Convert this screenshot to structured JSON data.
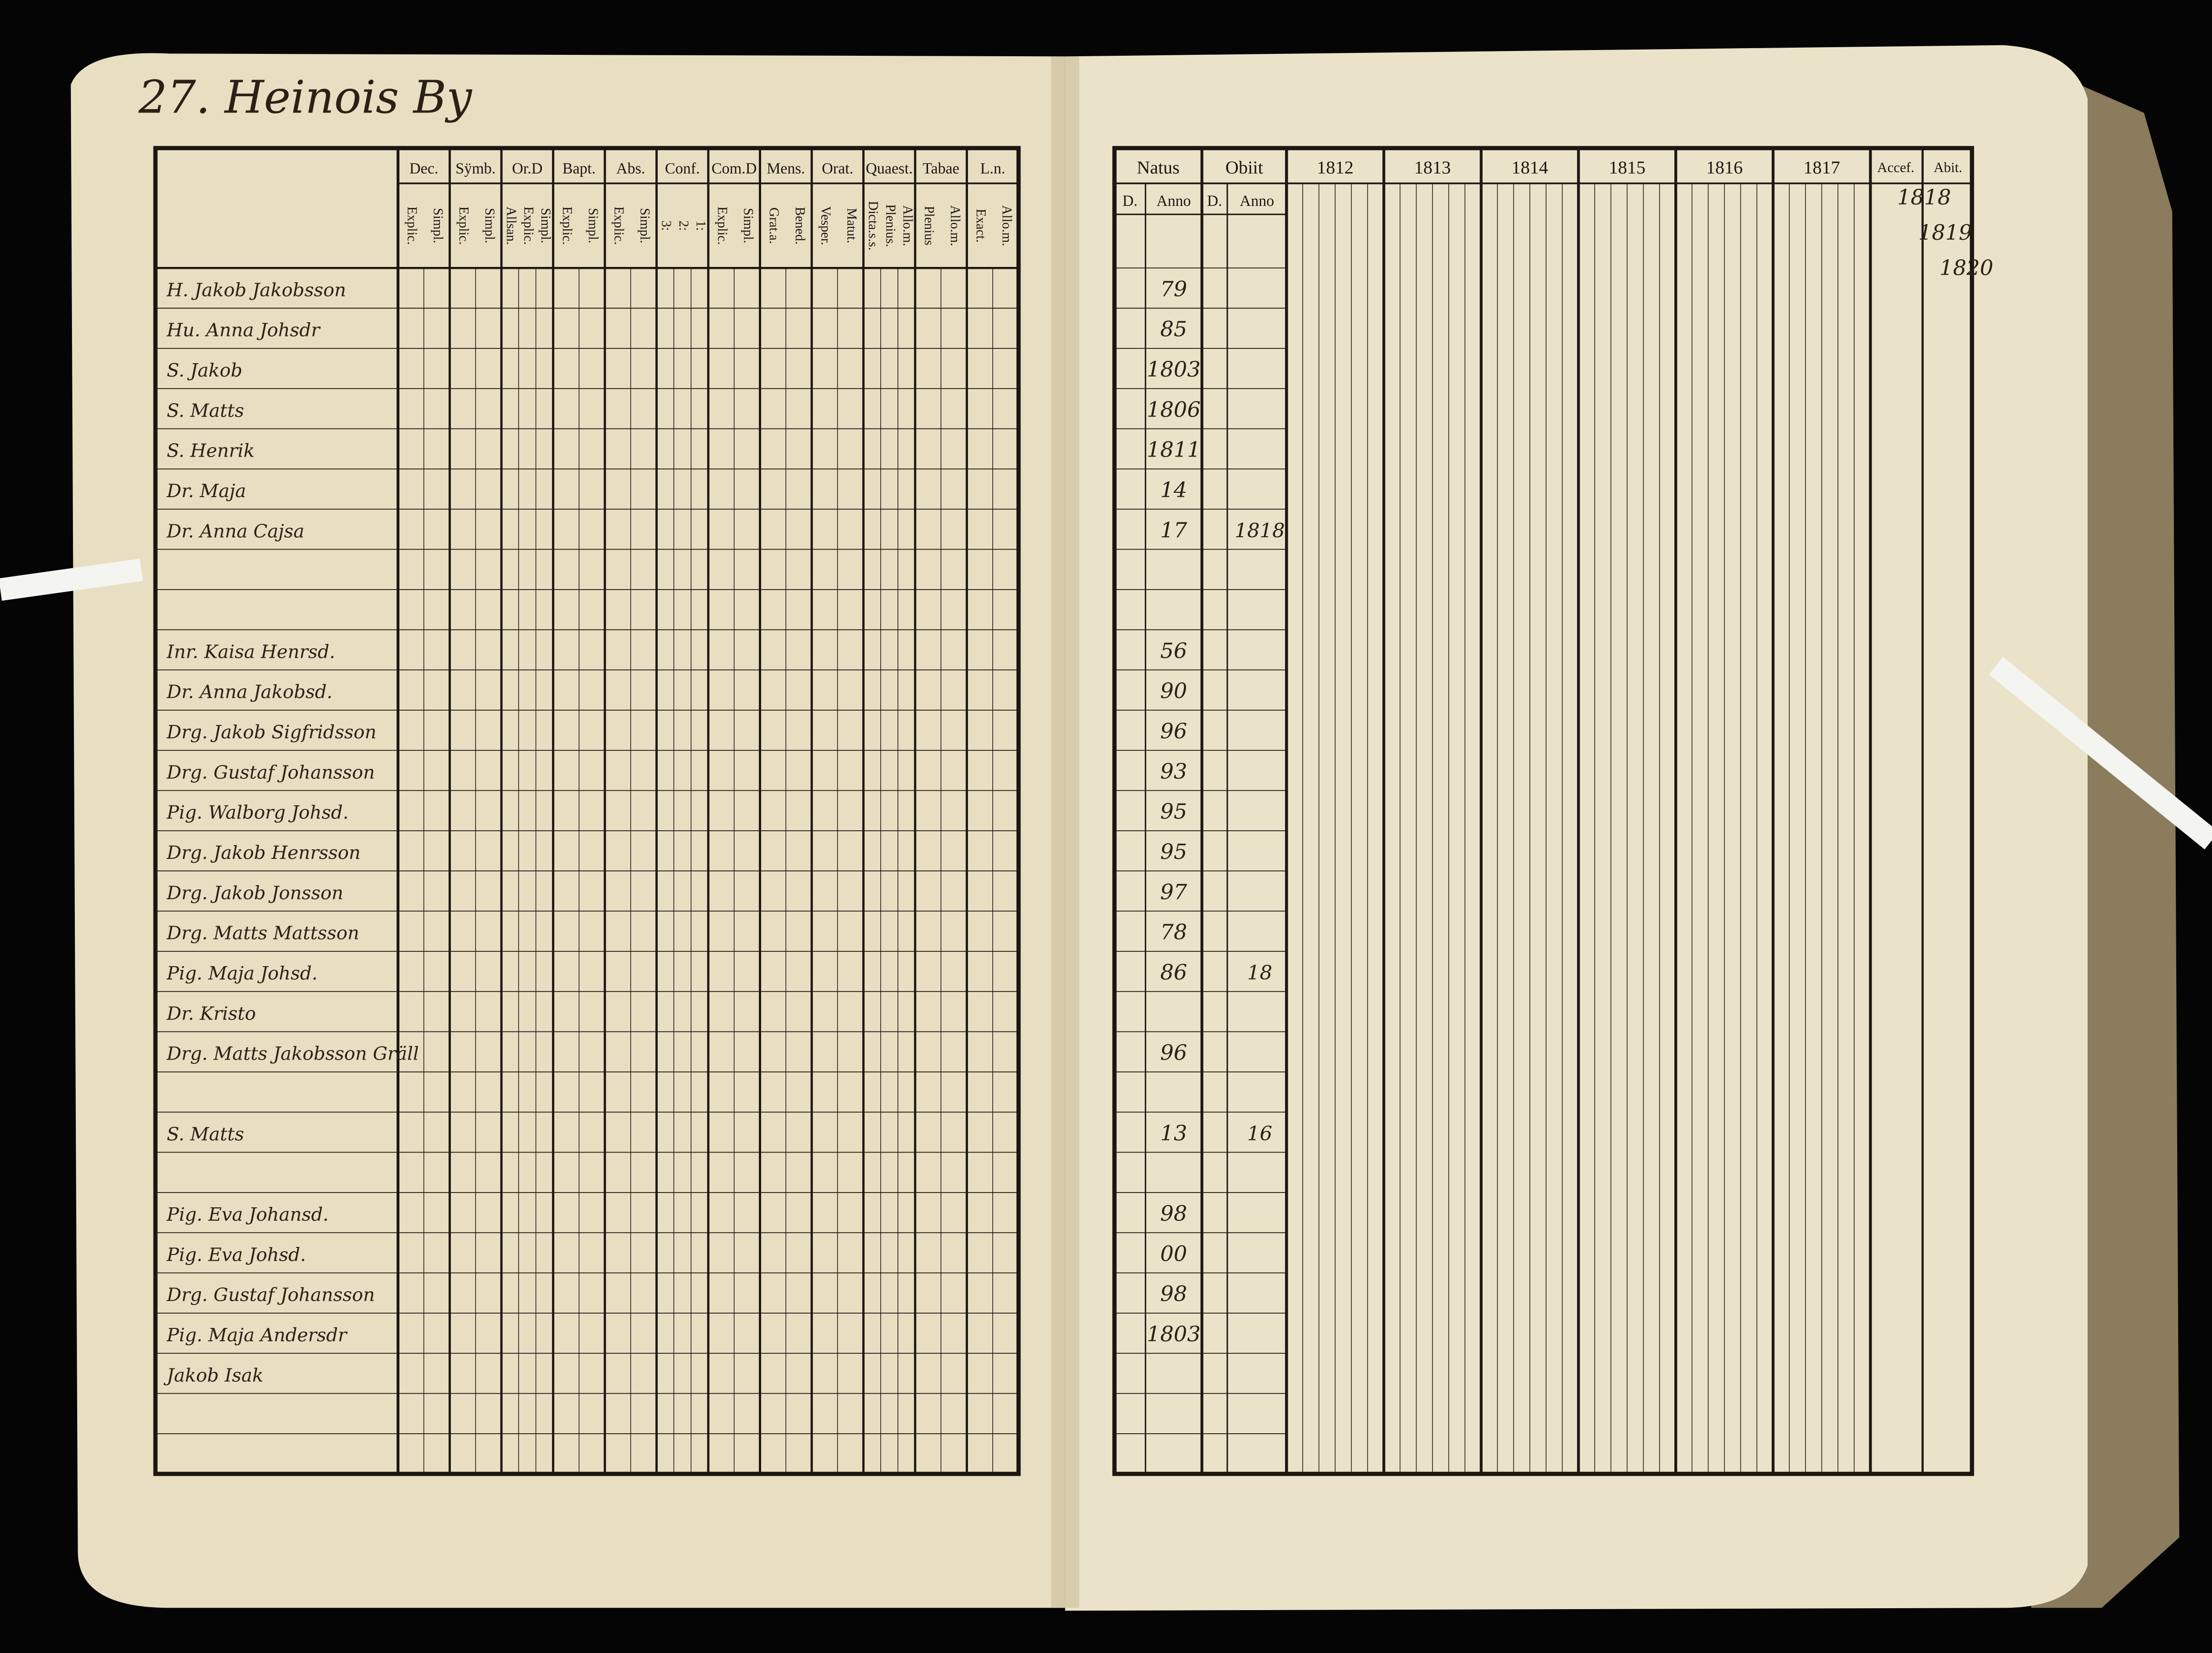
{
  "left_page": {
    "title": "27. Heinois By",
    "columns": [
      {
        "label": "Dec.",
        "sub": [
          "Explic.",
          "Simpl."
        ]
      },
      {
        "label": "Sÿmb.",
        "sub": [
          "Explic.",
          "Simpl."
        ]
      },
      {
        "label": "Or.D",
        "sub": [
          "Allsan.",
          "Explic.",
          "Simpl."
        ]
      },
      {
        "label": "Bapt.",
        "sub": [
          "Explic.",
          "Simpl."
        ]
      },
      {
        "label": "Abs.",
        "sub": [
          "Explic.",
          "Simpl."
        ]
      },
      {
        "label": "Conf.",
        "sub": [
          "3:",
          "2:",
          "1:"
        ]
      },
      {
        "label": "Com.D",
        "sub": [
          "Explic.",
          "Simpl."
        ]
      },
      {
        "label": "Mens.",
        "sub": [
          "Grat.a.",
          "Bened."
        ]
      },
      {
        "label": "Orat.",
        "sub": [
          "Vesper.",
          "Matut."
        ]
      },
      {
        "label": "Quaest.",
        "sub": [
          "Dicta.s.s.",
          "Plenius.",
          "Allo.m."
        ]
      },
      {
        "label": "Tabae",
        "sub": [
          "Plenius",
          "Allo.m."
        ]
      },
      {
        "label": "L.n.",
        "sub": [
          "Exact.",
          "Allo.m."
        ]
      }
    ],
    "names": [
      "H. Jakob Jakobsson",
      "Hu. Anna Johsdr",
      "S. Jakob",
      "S. Matts",
      "S. Henrik",
      "Dr. Maja",
      "Dr. Anna Cajsa",
      "Inr. Kaisa Henrsd.",
      "Dr. Anna Jakobsd.",
      "Drg. Jakob Sigfridsson",
      "Drg. Gustaf Johansson",
      "Pig. Walborg Johsd.",
      "Drg. Jakob Henrsson",
      "Drg. Jakob Jonsson",
      "Drg. Matts Mattsson",
      "Pig. Maja Johsd.",
      "Dr. Kristo",
      "Drg. Matts Jakobsson Gräll",
      "S. Matts",
      "Pig. Eva Johansd.",
      "Pig. Eva Johsd.",
      "Drg. Gustaf Johansson",
      "Pig. Maja Andersdr",
      "Jakob Isak"
    ]
  },
  "right_page": {
    "natus": {
      "label": "Natus",
      "sub": [
        "D.",
        "Anno"
      ]
    },
    "obiit": {
      "label": "Obiit",
      "sub": [
        "D.",
        "Anno"
      ]
    },
    "years": [
      "1812",
      "1813",
      "1814",
      "1815",
      "1816",
      "1817"
    ],
    "accef": "Accef.",
    "abit": "Abit.",
    "notes": [
      "1818",
      "1819",
      "1820"
    ],
    "natus_anno": [
      "79",
      "85",
      "1803",
      "1806",
      "1811",
      "14",
      "17",
      "56",
      "90",
      "96",
      "93",
      "95",
      "95",
      "97",
      "78",
      "86",
      null,
      "96",
      "13",
      "98",
      "00",
      "98",
      "1803",
      null
    ],
    "obiit_anno": [
      null,
      null,
      null,
      null,
      null,
      null,
      "1818",
      null,
      null,
      null,
      null,
      null,
      null,
      null,
      null,
      "18",
      null,
      null,
      "16",
      null,
      null,
      null,
      null,
      null
    ]
  }
}
